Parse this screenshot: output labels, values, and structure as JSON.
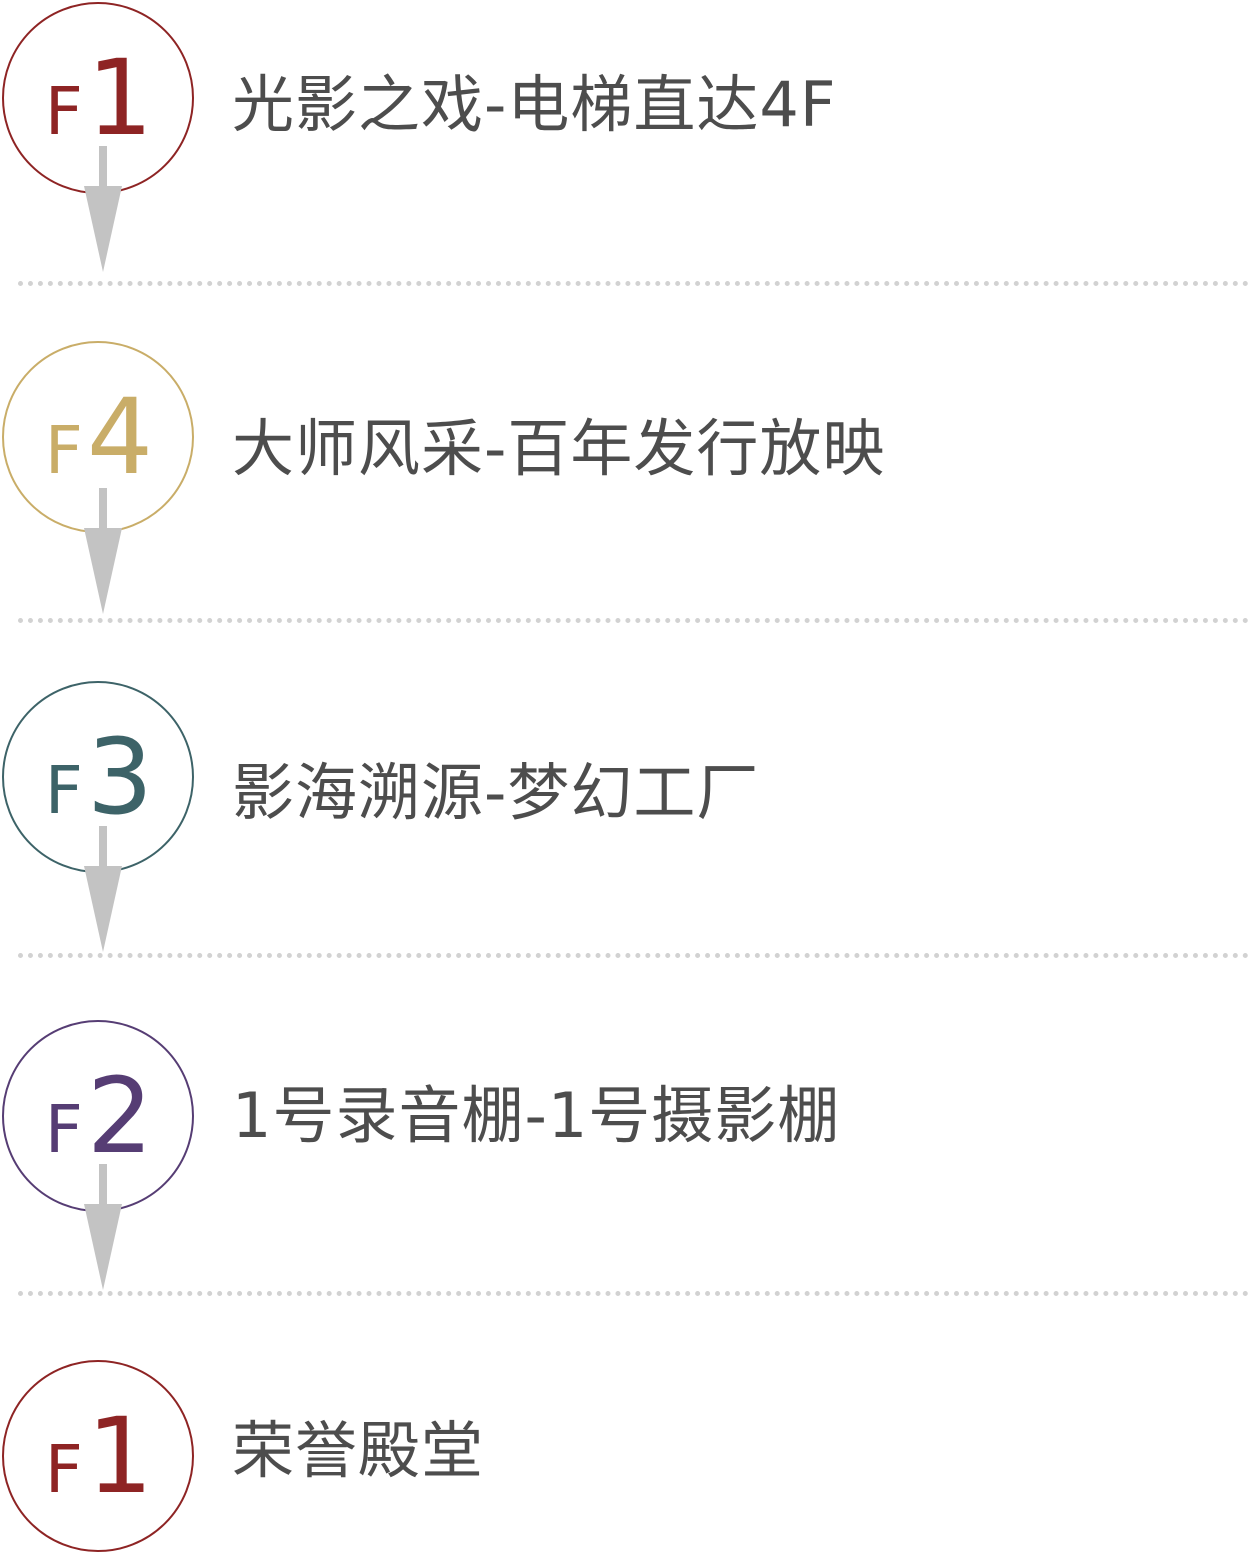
{
  "steps": [
    {
      "floor_letter": "F",
      "floor_number": "1",
      "label": "光影之戏-电梯直达4F",
      "color": "#8e2424",
      "has_arrow": true
    },
    {
      "floor_letter": "F",
      "floor_number": "4",
      "label": "大师风采-百年发行放映",
      "color": "#c9ad68",
      "has_arrow": true
    },
    {
      "floor_letter": "F",
      "floor_number": "3",
      "label": "影海溯源-梦幻工厂",
      "color": "#3d6368",
      "has_arrow": true
    },
    {
      "floor_letter": "F",
      "floor_number": "2",
      "label": "1号录音棚-1号摄影棚",
      "color": "#563d74",
      "has_arrow": true
    },
    {
      "floor_letter": "F",
      "floor_number": "1",
      "label": "荣誉殿堂",
      "color": "#8e2424",
      "has_arrow": false
    }
  ],
  "arrow_color": "#c3c3c3",
  "divider_color": "#d2d2d2"
}
